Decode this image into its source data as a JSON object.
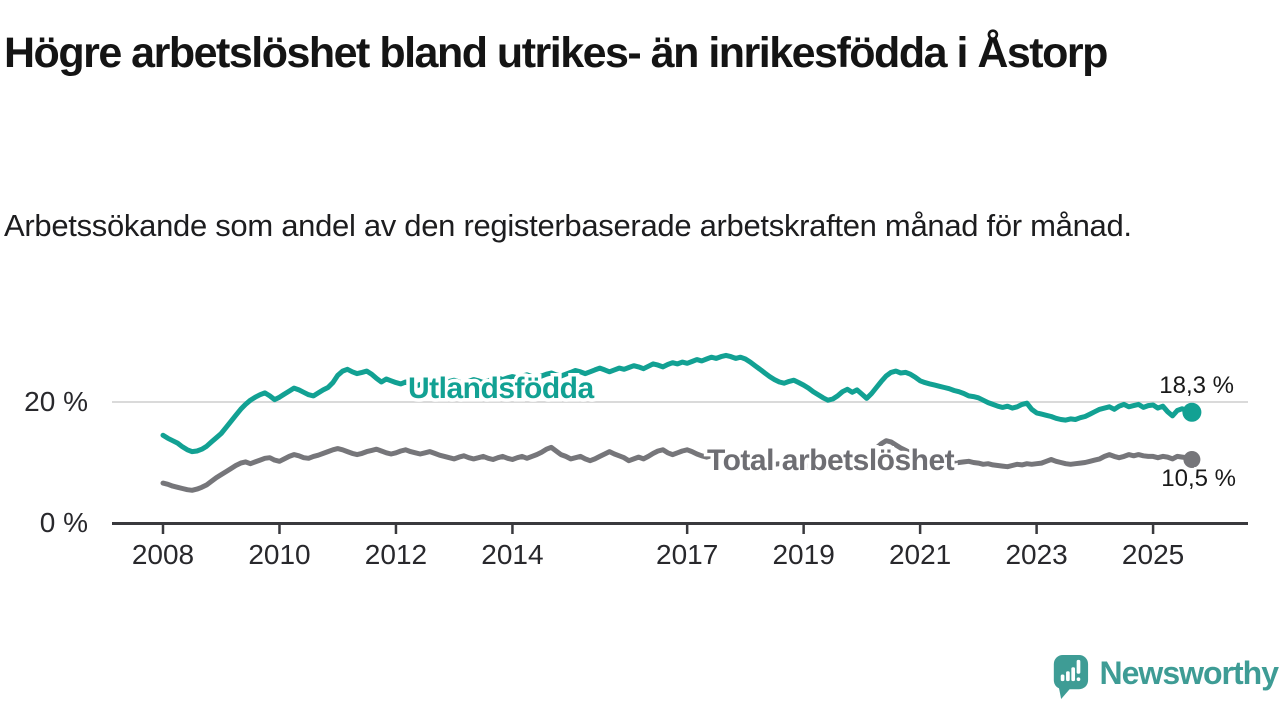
{
  "header": {
    "title": "Högre arbetslöshet bland utrikes- än inrikesfödda i Åstorp",
    "subtitle": "Arbetssökande som andel av den registerbaserade arbetskraften månad för månad."
  },
  "branding": {
    "logo_text": "Newsworthy",
    "logo_icon": "newsworthy-speech-bubble-bar-chart-icon",
    "logo_color": "#3e9c95"
  },
  "chart_data": {
    "type": "line",
    "title": "Högre arbetslöshet bland utrikes- än inrikesfödda i Åstorp",
    "subtitle": "Arbetssökande som andel av den registerbaserade arbetskraften månad för månad.",
    "x_interval": "monthly",
    "x_start_year": 2008,
    "x_end": "2025-09",
    "x_ticks": [
      2008,
      2010,
      2012,
      2014,
      2017,
      2019,
      2021,
      2023,
      2025
    ],
    "y_axis": {
      "unit": "%",
      "range": [
        0,
        30
      ],
      "ticks": [
        {
          "value": 0,
          "label": "0 %"
        },
        {
          "value": 20,
          "label": "20 %"
        }
      ]
    },
    "grid": "horizontal-20-only",
    "legend_position": "inline-on-line",
    "series": [
      {
        "name": "Utlandsfödda",
        "color": "#12a193",
        "end_value": 18.3,
        "end_value_label": "18,3 %",
        "values": [
          14.5,
          14.0,
          13.6,
          13.2,
          12.6,
          12.1,
          11.8,
          11.9,
          12.2,
          12.7,
          13.4,
          14.1,
          14.8,
          15.8,
          16.8,
          17.8,
          18.8,
          19.6,
          20.3,
          20.8,
          21.2,
          21.5,
          21.0,
          20.4,
          20.8,
          21.3,
          21.8,
          22.3,
          22.0,
          21.6,
          21.2,
          21.0,
          21.5,
          22.0,
          22.4,
          23.2,
          24.4,
          25.1,
          25.4,
          25.0,
          24.7,
          24.9,
          25.1,
          24.6,
          23.9,
          23.3,
          23.8,
          23.5,
          23.2,
          23.0,
          23.3,
          22.9,
          22.6,
          22.9,
          23.1,
          22.8,
          23.0,
          23.3,
          23.1,
          23.4,
          23.6,
          23.3,
          23.1,
          23.4,
          23.7,
          23.5,
          23.2,
          23.5,
          23.8,
          24.0,
          23.7,
          24.0,
          24.2,
          24.0,
          24.3,
          24.5,
          24.2,
          24.0,
          24.3,
          24.6,
          24.8,
          24.5,
          24.3,
          24.6,
          24.9,
          25.2,
          25.0,
          24.7,
          25.0,
          25.3,
          25.6,
          25.3,
          25.0,
          25.3,
          25.6,
          25.4,
          25.7,
          26.0,
          25.8,
          25.5,
          25.9,
          26.3,
          26.1,
          25.8,
          26.2,
          26.5,
          26.3,
          26.6,
          26.4,
          26.7,
          27.0,
          26.8,
          27.1,
          27.4,
          27.2,
          27.5,
          27.7,
          27.5,
          27.2,
          27.4,
          27.1,
          26.6,
          26.0,
          25.4,
          24.8,
          24.2,
          23.7,
          23.3,
          23.1,
          23.4,
          23.6,
          23.2,
          22.8,
          22.3,
          21.7,
          21.2,
          20.7,
          20.3,
          20.5,
          21.0,
          21.7,
          22.1,
          21.6,
          22.0,
          21.3,
          20.6,
          21.4,
          22.4,
          23.4,
          24.3,
          24.9,
          25.1,
          24.8,
          24.9,
          24.6,
          24.1,
          23.5,
          23.2,
          23.0,
          22.8,
          22.6,
          22.4,
          22.2,
          21.9,
          21.7,
          21.4,
          21.0,
          20.9,
          20.7,
          20.3,
          19.9,
          19.6,
          19.3,
          19.1,
          19.3,
          19.0,
          19.2,
          19.6,
          19.8,
          18.8,
          18.2,
          18.0,
          17.8,
          17.6,
          17.3,
          17.1,
          17.0,
          17.2,
          17.1,
          17.4,
          17.6,
          18.0,
          18.4,
          18.8,
          19.0,
          19.2,
          18.8,
          19.3,
          19.6,
          19.2,
          19.4,
          19.6,
          19.1,
          19.4,
          19.5,
          19.0,
          19.3,
          18.4,
          17.7,
          18.6,
          18.9,
          18.5,
          18.3
        ]
      },
      {
        "name": "Total arbetslöshet",
        "color": "#76767a",
        "label_color": "#6e6e73",
        "end_value": 10.5,
        "end_value_label": "10,5 %",
        "values": [
          6.6,
          6.4,
          6.1,
          5.9,
          5.7,
          5.5,
          5.4,
          5.6,
          5.9,
          6.3,
          6.9,
          7.5,
          8.0,
          8.5,
          9.0,
          9.5,
          9.9,
          10.1,
          9.8,
          10.1,
          10.4,
          10.7,
          10.8,
          10.4,
          10.2,
          10.6,
          11.0,
          11.3,
          11.1,
          10.8,
          10.7,
          11.0,
          11.2,
          11.5,
          11.8,
          12.1,
          12.3,
          12.1,
          11.8,
          11.5,
          11.3,
          11.5,
          11.8,
          12.0,
          12.2,
          11.9,
          11.6,
          11.4,
          11.6,
          11.9,
          12.1,
          11.8,
          11.6,
          11.4,
          11.6,
          11.8,
          11.5,
          11.2,
          11.0,
          10.8,
          10.6,
          10.9,
          11.1,
          10.8,
          10.6,
          10.8,
          11.0,
          10.7,
          10.5,
          10.8,
          11.0,
          10.7,
          10.5,
          10.8,
          11.0,
          10.7,
          11.0,
          11.3,
          11.7,
          12.2,
          12.5,
          11.9,
          11.3,
          11.0,
          10.6,
          10.8,
          11.0,
          10.6,
          10.3,
          10.6,
          11.0,
          11.4,
          11.8,
          11.4,
          11.1,
          10.8,
          10.3,
          10.6,
          10.9,
          10.6,
          11.0,
          11.5,
          11.9,
          12.1,
          11.6,
          11.3,
          11.6,
          11.9,
          12.1,
          11.8,
          11.4,
          11.1,
          10.9,
          11.1,
          11.3,
          11.0,
          10.8,
          10.9,
          11.1,
          10.9,
          10.7,
          10.5,
          10.3,
          10.1,
          9.9,
          9.8,
          9.7,
          9.8,
          9.9,
          9.8,
          9.7,
          9.6,
          9.5,
          9.4,
          9.3,
          9.4,
          9.5,
          9.6,
          9.7,
          9.8,
          9.9,
          10.0,
          9.9,
          10.0,
          10.2,
          10.6,
          11.4,
          12.4,
          13.1,
          13.6,
          13.4,
          12.9,
          12.4,
          12.0,
          11.6,
          11.2,
          10.9,
          10.7,
          10.5,
          10.3,
          10.1,
          10.0,
          9.9,
          9.9,
          10.0,
          10.1,
          10.2,
          10.0,
          9.9,
          9.7,
          9.8,
          9.6,
          9.5,
          9.4,
          9.3,
          9.5,
          9.7,
          9.6,
          9.8,
          9.7,
          9.8,
          9.9,
          10.2,
          10.5,
          10.2,
          10.0,
          9.8,
          9.7,
          9.8,
          9.9,
          10.0,
          10.2,
          10.4,
          10.6,
          11.0,
          11.3,
          11.0,
          10.8,
          11.0,
          11.3,
          11.1,
          11.3,
          11.1,
          11.0,
          11.0,
          10.8,
          11.0,
          10.9,
          10.6,
          11.0,
          10.9,
          10.8,
          10.5
        ]
      }
    ]
  }
}
